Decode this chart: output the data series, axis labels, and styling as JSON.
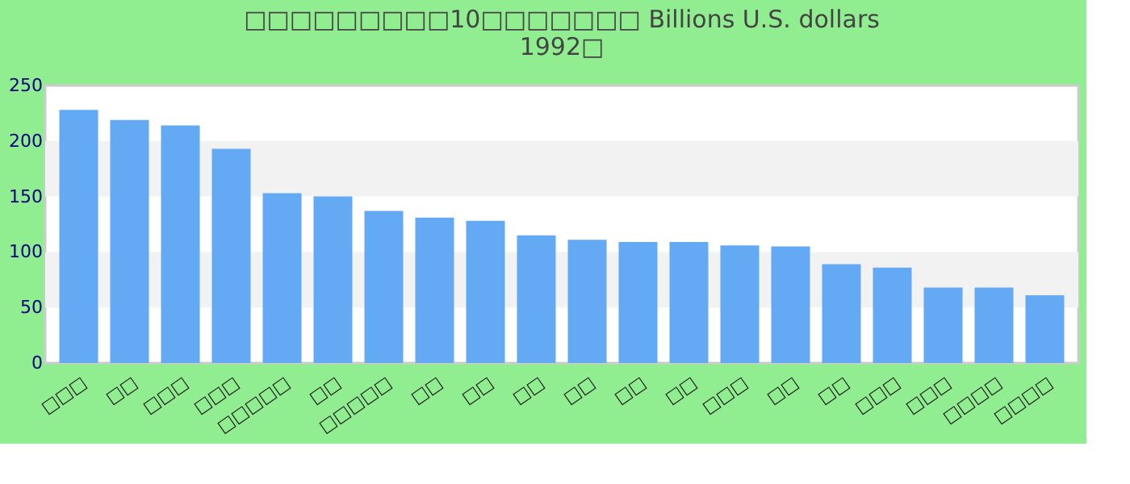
{
  "chart_data": {
    "type": "bar",
    "title": [
      "□□□□□□□□□10□□□□□□□ Billions U.S. dollars",
      "1992□"
    ],
    "categories": [
      "□□□",
      "□□",
      "□□□",
      "□□□",
      "□□□□□",
      "□□",
      "□□□□□",
      "□□",
      "□□",
      "□□",
      "□□",
      "□□",
      "□□",
      "□□□",
      "□□",
      "□□",
      "□□□",
      "□□□",
      "□□□□",
      "□□□□"
    ],
    "values": [
      228,
      219,
      214,
      193,
      153,
      150,
      137,
      131,
      128,
      115,
      111,
      109,
      109,
      106,
      105,
      89,
      86,
      68,
      68,
      61
    ],
    "color": "#63a9f3",
    "ylim": [
      0,
      250
    ],
    "yticks": [
      0,
      50,
      100,
      150,
      200,
      250
    ],
    "bands": [
      {
        "axis": "y",
        "from": 50,
        "to": 100,
        "color": "#f2f2f2"
      },
      {
        "axis": "y",
        "from": 150,
        "to": 200,
        "color": "#f2f2f2"
      }
    ],
    "grid": false
  }
}
